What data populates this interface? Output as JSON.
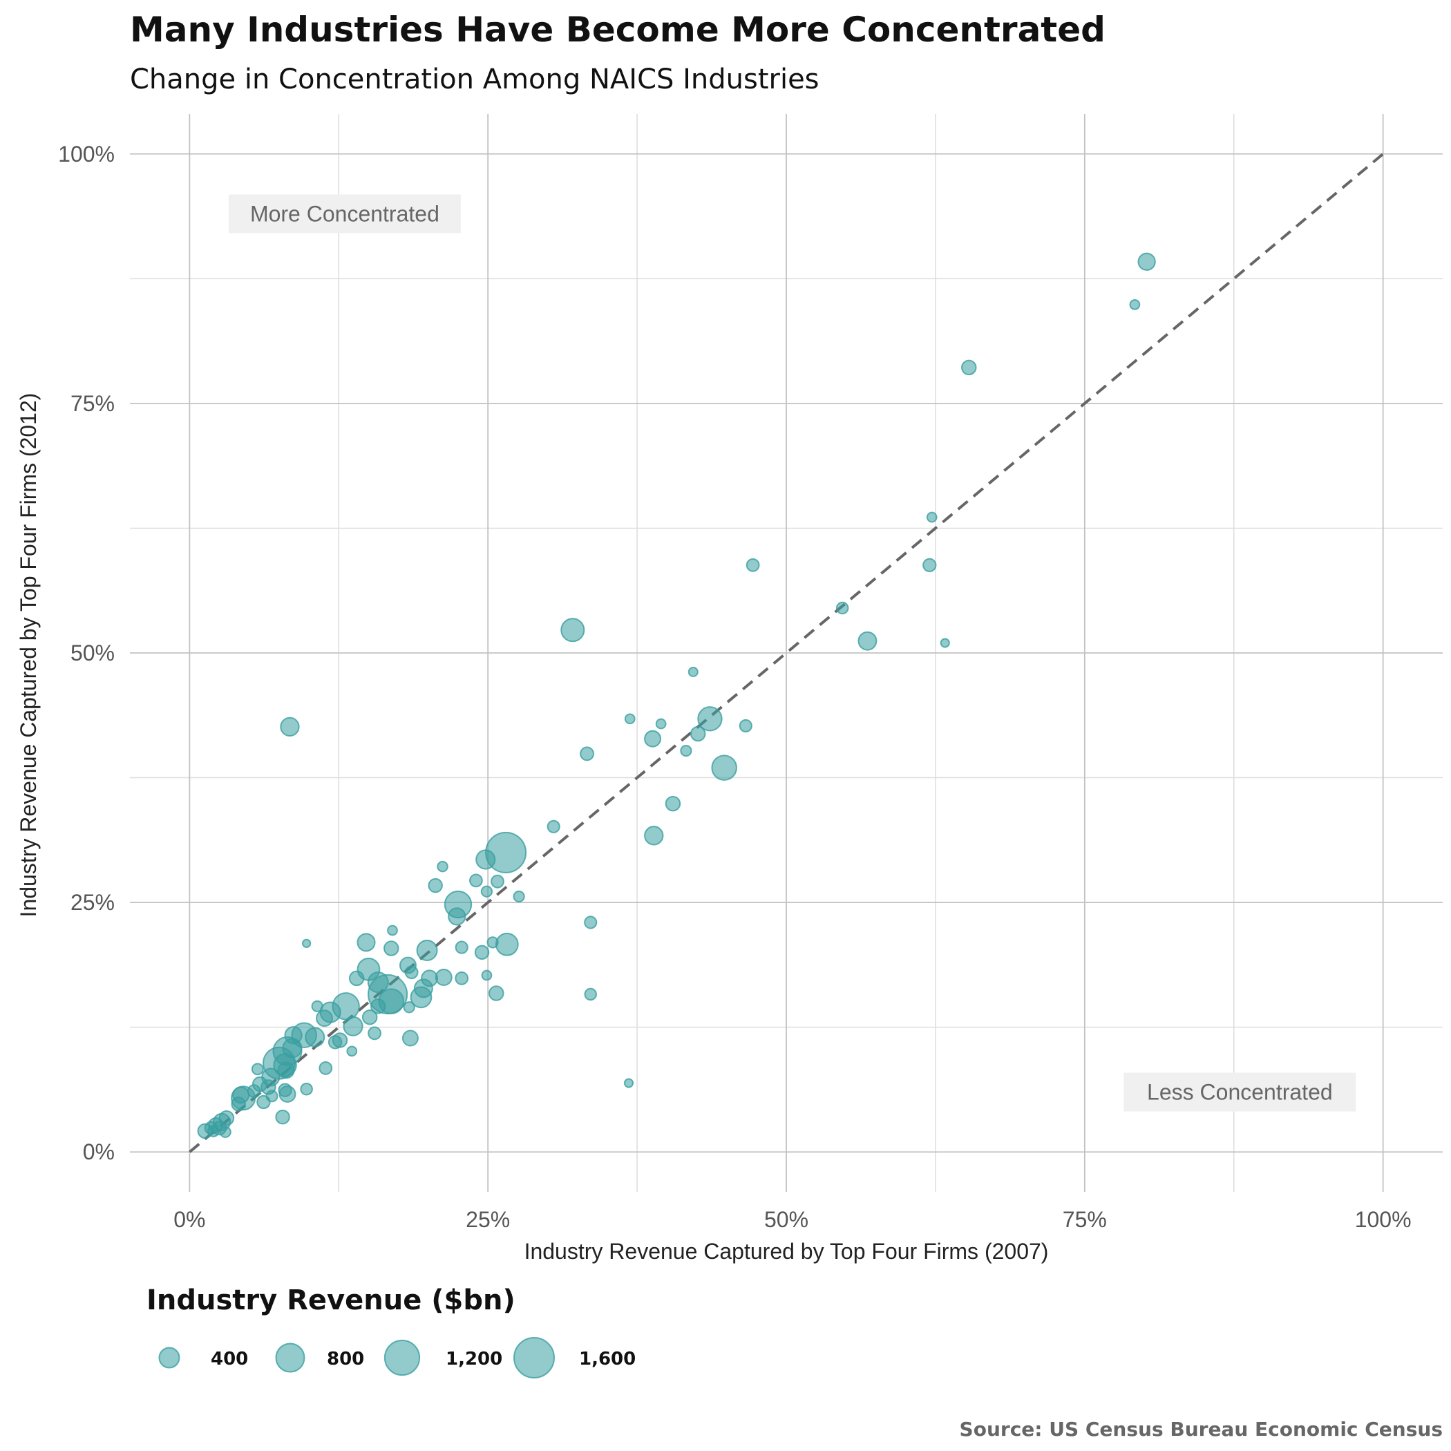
{
  "chart_data": {
    "type": "scatter",
    "title": "Many Industries Have Become More Concentrated",
    "subtitle": "Change in Concentration Among NAICS Industries",
    "xlabel": "Industry Revenue Captured by Top Four Firms (2007)",
    "ylabel": "Industry Revenue Captured by Top Four Firms (2012)",
    "xlim": [
      -0.05,
      1.05
    ],
    "ylim": [
      -0.04,
      1.04
    ],
    "x_ticks": [
      0,
      0.25,
      0.5,
      0.75,
      1.0
    ],
    "y_ticks": [
      0,
      0.25,
      0.5,
      0.75,
      1.0
    ],
    "x_tick_labels": [
      "0%",
      "25%",
      "50%",
      "75%",
      "100%"
    ],
    "y_tick_labels": [
      "0%",
      "25%",
      "50%",
      "75%",
      "100%"
    ],
    "grid": true,
    "reference_line": "y = x (dashed)",
    "annotations": [
      {
        "text": "More Concentrated",
        "x": 0.13,
        "y": 0.94
      },
      {
        "text": "Less Concentrated",
        "x": 0.88,
        "y": 0.06
      }
    ],
    "size_legend": {
      "title": "Industry Revenue ($bn)",
      "values": [
        400,
        800,
        1200,
        1600
      ],
      "labels": [
        "400",
        "800",
        "1,200",
        "1,600"
      ],
      "placement": "bottom-left"
    },
    "point_color": "#3a9fa0",
    "source": "Source: US Census Bureau Economic Census",
    "points": [
      {
        "x": 0.802,
        "y": 0.892,
        "r": 280
      },
      {
        "x": 0.792,
        "y": 0.849,
        "r": 90
      },
      {
        "x": 0.653,
        "y": 0.786,
        "r": 200
      },
      {
        "x": 0.622,
        "y": 0.636,
        "r": 90
      },
      {
        "x": 0.62,
        "y": 0.588,
        "r": 160
      },
      {
        "x": 0.633,
        "y": 0.51,
        "r": 70
      },
      {
        "x": 0.568,
        "y": 0.512,
        "r": 320
      },
      {
        "x": 0.547,
        "y": 0.545,
        "r": 130
      },
      {
        "x": 0.472,
        "y": 0.588,
        "r": 150
      },
      {
        "x": 0.436,
        "y": 0.434,
        "r": 560
      },
      {
        "x": 0.448,
        "y": 0.385,
        "r": 600
      },
      {
        "x": 0.466,
        "y": 0.427,
        "r": 140
      },
      {
        "x": 0.422,
        "y": 0.481,
        "r": 80
      },
      {
        "x": 0.426,
        "y": 0.419,
        "r": 200
      },
      {
        "x": 0.416,
        "y": 0.402,
        "r": 110
      },
      {
        "x": 0.395,
        "y": 0.429,
        "r": 90
      },
      {
        "x": 0.388,
        "y": 0.414,
        "r": 250
      },
      {
        "x": 0.405,
        "y": 0.349,
        "r": 200
      },
      {
        "x": 0.389,
        "y": 0.317,
        "r": 330
      },
      {
        "x": 0.369,
        "y": 0.434,
        "r": 90
      },
      {
        "x": 0.333,
        "y": 0.399,
        "r": 170
      },
      {
        "x": 0.321,
        "y": 0.523,
        "r": 520
      },
      {
        "x": 0.305,
        "y": 0.326,
        "r": 140
      },
      {
        "x": 0.265,
        "y": 0.3,
        "r": 1600
      },
      {
        "x": 0.266,
        "y": 0.208,
        "r": 480
      },
      {
        "x": 0.336,
        "y": 0.23,
        "r": 140
      },
      {
        "x": 0.336,
        "y": 0.158,
        "r": 130
      },
      {
        "x": 0.368,
        "y": 0.069,
        "r": 70
      },
      {
        "x": 0.276,
        "y": 0.256,
        "r": 110
      },
      {
        "x": 0.258,
        "y": 0.271,
        "r": 150
      },
      {
        "x": 0.249,
        "y": 0.261,
        "r": 110
      },
      {
        "x": 0.248,
        "y": 0.293,
        "r": 350
      },
      {
        "x": 0.24,
        "y": 0.272,
        "r": 150
      },
      {
        "x": 0.225,
        "y": 0.248,
        "r": 700
      },
      {
        "x": 0.224,
        "y": 0.236,
        "r": 280
      },
      {
        "x": 0.212,
        "y": 0.286,
        "r": 100
      },
      {
        "x": 0.206,
        "y": 0.267,
        "r": 180
      },
      {
        "x": 0.228,
        "y": 0.205,
        "r": 140
      },
      {
        "x": 0.245,
        "y": 0.2,
        "r": 180
      },
      {
        "x": 0.254,
        "y": 0.21,
        "r": 110
      },
      {
        "x": 0.249,
        "y": 0.177,
        "r": 90
      },
      {
        "x": 0.257,
        "y": 0.159,
        "r": 200
      },
      {
        "x": 0.228,
        "y": 0.174,
        "r": 150
      },
      {
        "x": 0.213,
        "y": 0.175,
        "r": 250
      },
      {
        "x": 0.199,
        "y": 0.202,
        "r": 400
      },
      {
        "x": 0.201,
        "y": 0.174,
        "r": 250
      },
      {
        "x": 0.196,
        "y": 0.164,
        "r": 320
      },
      {
        "x": 0.194,
        "y": 0.155,
        "r": 420
      },
      {
        "x": 0.183,
        "y": 0.187,
        "r": 250
      },
      {
        "x": 0.186,
        "y": 0.18,
        "r": 150
      },
      {
        "x": 0.17,
        "y": 0.222,
        "r": 90
      },
      {
        "x": 0.169,
        "y": 0.204,
        "r": 200
      },
      {
        "x": 0.148,
        "y": 0.21,
        "r": 300
      },
      {
        "x": 0.15,
        "y": 0.183,
        "r": 480
      },
      {
        "x": 0.14,
        "y": 0.174,
        "r": 200
      },
      {
        "x": 0.158,
        "y": 0.17,
        "r": 400
      },
      {
        "x": 0.166,
        "y": 0.158,
        "r": 1500
      },
      {
        "x": 0.169,
        "y": 0.151,
        "r": 600
      },
      {
        "x": 0.158,
        "y": 0.146,
        "r": 200
      },
      {
        "x": 0.151,
        "y": 0.135,
        "r": 200
      },
      {
        "x": 0.184,
        "y": 0.145,
        "r": 110
      },
      {
        "x": 0.185,
        "y": 0.114,
        "r": 230
      },
      {
        "x": 0.155,
        "y": 0.119,
        "r": 150
      },
      {
        "x": 0.131,
        "y": 0.146,
        "r": 700
      },
      {
        "x": 0.137,
        "y": 0.126,
        "r": 350
      },
      {
        "x": 0.118,
        "y": 0.14,
        "r": 400
      },
      {
        "x": 0.113,
        "y": 0.134,
        "r": 250
      },
      {
        "x": 0.107,
        "y": 0.146,
        "r": 110
      },
      {
        "x": 0.126,
        "y": 0.112,
        "r": 200
      },
      {
        "x": 0.122,
        "y": 0.11,
        "r": 160
      },
      {
        "x": 0.136,
        "y": 0.101,
        "r": 90
      },
      {
        "x": 0.114,
        "y": 0.084,
        "r": 150
      },
      {
        "x": 0.098,
        "y": 0.209,
        "r": 60
      },
      {
        "x": 0.084,
        "y": 0.426,
        "r": 330
      },
      {
        "x": 0.105,
        "y": 0.115,
        "r": 350
      },
      {
        "x": 0.096,
        "y": 0.117,
        "r": 600
      },
      {
        "x": 0.087,
        "y": 0.117,
        "r": 280
      },
      {
        "x": 0.082,
        "y": 0.101,
        "r": 800
      },
      {
        "x": 0.086,
        "y": 0.104,
        "r": 350
      },
      {
        "x": 0.075,
        "y": 0.089,
        "r": 1000
      },
      {
        "x": 0.08,
        "y": 0.087,
        "r": 500
      },
      {
        "x": 0.081,
        "y": 0.082,
        "r": 250
      },
      {
        "x": 0.068,
        "y": 0.075,
        "r": 300
      },
      {
        "x": 0.066,
        "y": 0.065,
        "r": 200
      },
      {
        "x": 0.069,
        "y": 0.056,
        "r": 120
      },
      {
        "x": 0.057,
        "y": 0.083,
        "r": 120
      },
      {
        "x": 0.059,
        "y": 0.068,
        "r": 200
      },
      {
        "x": 0.054,
        "y": 0.061,
        "r": 150
      },
      {
        "x": 0.062,
        "y": 0.05,
        "r": 160
      },
      {
        "x": 0.08,
        "y": 0.062,
        "r": 160
      },
      {
        "x": 0.082,
        "y": 0.058,
        "r": 250
      },
      {
        "x": 0.098,
        "y": 0.063,
        "r": 130
      },
      {
        "x": 0.078,
        "y": 0.035,
        "r": 180
      },
      {
        "x": 0.043,
        "y": 0.057,
        "r": 250
      },
      {
        "x": 0.045,
        "y": 0.054,
        "r": 550
      },
      {
        "x": 0.041,
        "y": 0.048,
        "r": 180
      },
      {
        "x": 0.031,
        "y": 0.034,
        "r": 200
      },
      {
        "x": 0.027,
        "y": 0.03,
        "r": 280
      },
      {
        "x": 0.022,
        "y": 0.027,
        "r": 200
      },
      {
        "x": 0.025,
        "y": 0.024,
        "r": 180
      },
      {
        "x": 0.018,
        "y": 0.024,
        "r": 150
      },
      {
        "x": 0.013,
        "y": 0.021,
        "r": 200
      },
      {
        "x": 0.03,
        "y": 0.02,
        "r": 110
      },
      {
        "x": 0.02,
        "y": 0.021,
        "r": 120
      }
    ]
  }
}
